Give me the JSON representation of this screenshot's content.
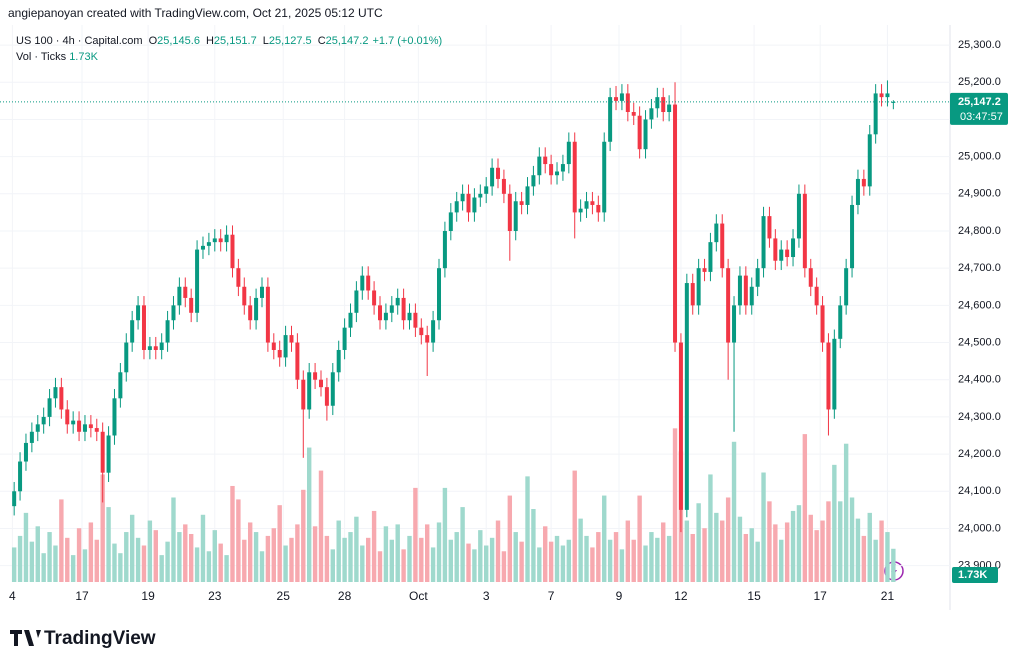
{
  "header": "angiepanoyan created with TradingView.com, Oct 21, 2025 05:12 UTC",
  "logo": "TradingView",
  "chart_data": {
    "type": "candlestick",
    "legend": {
      "symbol": "US 100 · 4h · Capital.com",
      "fields": [
        {
          "label": "O",
          "value": "25,145.6"
        },
        {
          "label": "H",
          "value": "25,151.7"
        },
        {
          "label": "L",
          "value": "25,127.5"
        },
        {
          "label": "C",
          "value": "25,147.2"
        }
      ],
      "change": "+1.7 (+0.01%)",
      "volume_title": "Vol · Ticks",
      "volume_value": "1.73K"
    },
    "price_label": "25,147.2",
    "countdown": "03:47:57",
    "up_color": "#089981",
    "down_color": "#f23645",
    "volume_up_color": "#9fd9cd",
    "volume_down_color": "#f7a9af",
    "grid": true,
    "xlim": [
      -2.4,
      158.6
    ],
    "xticks": [
      {
        "value": -0.3,
        "label": "4"
      },
      {
        "value": 11.5,
        "label": "17"
      },
      {
        "value": 22.7,
        "label": "19"
      },
      {
        "value": 34,
        "label": "23"
      },
      {
        "value": 45.6,
        "label": "25"
      },
      {
        "value": 56,
        "label": "28"
      },
      {
        "value": 68.5,
        "label": "Oct"
      },
      {
        "value": 80,
        "label": "3"
      },
      {
        "value": 91,
        "label": "7"
      },
      {
        "value": 102.5,
        "label": "9"
      },
      {
        "value": 113,
        "label": "12"
      },
      {
        "value": 125.4,
        "label": "15"
      },
      {
        "value": 136.6,
        "label": "17"
      },
      {
        "value": 148,
        "label": "21"
      }
    ],
    "ylim": [
      23856,
      25354
    ],
    "yticks": [
      {
        "value": 23900,
        "label": "23,900.0"
      },
      {
        "value": 24000,
        "label": "24,000.0"
      },
      {
        "value": 24100,
        "label": "24,100.0"
      },
      {
        "value": 24200,
        "label": "24,200.0"
      },
      {
        "value": 24300,
        "label": "24,300.0"
      },
      {
        "value": 24400,
        "label": "24,400.0"
      },
      {
        "value": 24500,
        "label": "24,500.0"
      },
      {
        "value": 24600,
        "label": "24,600.0"
      },
      {
        "value": 24700,
        "label": "24,700.0"
      },
      {
        "value": 24800,
        "label": "24,800.0"
      },
      {
        "value": 24900,
        "label": "24,900.0"
      },
      {
        "value": 25000,
        "label": "25,000.0"
      },
      {
        "value": 25100,
        "label": "25,100.0"
      },
      {
        "value": 25200,
        "label": "25,200.0"
      },
      {
        "value": 25300,
        "label": "25,300.0"
      }
    ],
    "volume_ylim": [
      0,
      29000
    ],
    "open": [
      24060,
      24100,
      24180,
      24230,
      24260,
      24280,
      24300,
      24350,
      24380,
      24320,
      24280,
      24290,
      24260,
      24280,
      24270,
      24260,
      24150,
      24250,
      24350,
      24420,
      24500,
      24560,
      24600,
      24480,
      24490,
      24480,
      24500,
      24560,
      24600,
      24650,
      24620,
      24580,
      24750,
      24760,
      24770,
      24780,
      24770,
      24790,
      24700,
      24650,
      24600,
      24560,
      24620,
      24650,
      24500,
      24480,
      24460,
      24520,
      24500,
      24400,
      24320,
      24420,
      24400,
      24380,
      24330,
      24420,
      24480,
      24540,
      24580,
      24640,
      24680,
      24640,
      24600,
      24560,
      24580,
      24600,
      24620,
      24560,
      24580,
      24540,
      24520,
      24500,
      24560,
      24700,
      24800,
      24850,
      24880,
      24900,
      24850,
      24890,
      24900,
      24920,
      24970,
      24940,
      24900,
      24800,
      24880,
      24870,
      24920,
      24950,
      25000,
      24980,
      24950,
      24960,
      24980,
      25040,
      24850,
      24860,
      24880,
      24870,
      24850,
      25040,
      25160,
      25150,
      25170,
      25120,
      25110,
      25020,
      25100,
      25130,
      25160,
      25120,
      25140,
      24500,
      24050,
      24660,
      24600,
      24700,
      24690,
      24770,
      24820,
      24700,
      24500,
      24600,
      24680,
      24600,
      24650,
      24700,
      24840,
      24780,
      24720,
      24750,
      24730,
      24780,
      24900,
      24700,
      24650,
      24600,
      24500,
      24320,
      24510,
      24600,
      24700,
      24870,
      24940,
      24920,
      25060,
      25170,
      25160,
      25145.6
    ],
    "high": [
      24125,
      24205,
      24255,
      24285,
      24305,
      24325,
      24375,
      24405,
      24405,
      24345,
      24315,
      24315,
      24305,
      24305,
      24295,
      24285,
      24275,
      24375,
      24445,
      24525,
      24585,
      24625,
      24625,
      24515,
      24515,
      24525,
      24585,
      24625,
      24675,
      24675,
      24645,
      24775,
      24785,
      24795,
      24805,
      24805,
      24815,
      24815,
      24725,
      24675,
      24625,
      24645,
      24675,
      24675,
      24525,
      24505,
      24545,
      24545,
      24525,
      24425,
      24445,
      24445,
      24425,
      24405,
      24445,
      24505,
      24565,
      24605,
      24665,
      24705,
      24705,
      24665,
      24625,
      24605,
      24625,
      24645,
      24645,
      24605,
      24605,
      24565,
      24545,
      24585,
      24725,
      24825,
      24875,
      24905,
      24925,
      24925,
      24915,
      24925,
      24945,
      24995,
      24995,
      24965,
      24925,
      24905,
      24905,
      24945,
      24975,
      25025,
      25025,
      25005,
      24985,
      25005,
      25065,
      25065,
      24885,
      24905,
      24905,
      24895,
      25065,
      25185,
      25190,
      25195,
      25195,
      25145,
      25135,
      25125,
      25155,
      25185,
      25185,
      25165,
      25200,
      24525,
      24685,
      24685,
      24725,
      24725,
      24795,
      24845,
      24845,
      24725,
      24625,
      24705,
      24705,
      24675,
      24725,
      24865,
      24865,
      24805,
      24775,
      24775,
      24805,
      24925,
      24925,
      24725,
      24675,
      24625,
      24525,
      24535,
      24625,
      24725,
      24895,
      24965,
      24965,
      25085,
      25195,
      25195,
      25205,
      25151.7
    ],
    "low": [
      24035,
      24075,
      24155,
      24205,
      24235,
      24255,
      24275,
      24325,
      24295,
      24255,
      24255,
      24235,
      24235,
      24245,
      24235,
      24070,
      24125,
      24225,
      24325,
      24395,
      24475,
      24535,
      24455,
      24455,
      24455,
      24455,
      24475,
      24535,
      24575,
      24595,
      24555,
      24555,
      24725,
      24735,
      24745,
      24745,
      24745,
      24675,
      24625,
      24575,
      24535,
      24535,
      24595,
      24475,
      24455,
      24435,
      24435,
      24475,
      24375,
      24190,
      24295,
      24375,
      24355,
      24290,
      24305,
      24395,
      24455,
      24515,
      24555,
      24615,
      24615,
      24575,
      24535,
      24535,
      24555,
      24575,
      24535,
      24535,
      24515,
      24495,
      24410,
      24475,
      24535,
      24675,
      24775,
      24825,
      24855,
      24825,
      24825,
      24865,
      24875,
      24895,
      24915,
      24875,
      24720,
      24775,
      24845,
      24845,
      24895,
      24925,
      24955,
      24925,
      24925,
      24935,
      24955,
      24780,
      24825,
      24835,
      24845,
      24825,
      24825,
      25015,
      25125,
      25125,
      25095,
      25085,
      24995,
      24995,
      25075,
      25105,
      25095,
      25095,
      24475,
      23990,
      24030,
      24575,
      24575,
      24665,
      24665,
      24745,
      24675,
      24400,
      24260,
      24575,
      24575,
      24575,
      24625,
      24675,
      24755,
      24695,
      24695,
      24705,
      24705,
      24755,
      24675,
      24625,
      24575,
      24475,
      24250,
      24295,
      24485,
      24575,
      24675,
      24845,
      24895,
      24895,
      25035,
      25135,
      25135,
      25127.5
    ],
    "close": [
      24100,
      24180,
      24230,
      24260,
      24280,
      24300,
      24350,
      24380,
      24320,
      24280,
      24290,
      24260,
      24280,
      24270,
      24260,
      24150,
      24250,
      24350,
      24420,
      24500,
      24560,
      24600,
      24480,
      24490,
      24480,
      24500,
      24560,
      24600,
      24650,
      24620,
      24580,
      24750,
      24760,
      24770,
      24780,
      24770,
      24790,
      24700,
      24650,
      24600,
      24560,
      24620,
      24650,
      24500,
      24480,
      24460,
      24520,
      24500,
      24400,
      24320,
      24420,
      24400,
      24380,
      24330,
      24420,
      24480,
      24540,
      24580,
      24640,
      24680,
      24640,
      24600,
      24560,
      24580,
      24600,
      24620,
      24560,
      24580,
      24540,
      24520,
      24500,
      24560,
      24700,
      24800,
      24850,
      24880,
      24900,
      24850,
      24890,
      24900,
      24920,
      24970,
      24940,
      24900,
      24800,
      24880,
      24870,
      24920,
      24950,
      25000,
      24980,
      24950,
      24960,
      24980,
      25040,
      24850,
      24860,
      24880,
      24870,
      24850,
      25040,
      25160,
      25150,
      25170,
      25120,
      25110,
      25020,
      25100,
      25130,
      25160,
      25120,
      25140,
      24500,
      24050,
      24660,
      24600,
      24700,
      24690,
      24770,
      24820,
      24700,
      24500,
      24600,
      24680,
      24600,
      24650,
      24700,
      24840,
      24780,
      24720,
      24750,
      24730,
      24780,
      24900,
      24700,
      24650,
      24600,
      24500,
      24320,
      24510,
      24600,
      24700,
      24870,
      24940,
      24920,
      25060,
      25170,
      25160,
      25170,
      25147.2
    ],
    "volume": [
      1800,
      2400,
      3600,
      2100,
      2900,
      1500,
      2600,
      1900,
      4300,
      2300,
      1400,
      2800,
      1700,
      3100,
      2200,
      5600,
      3900,
      2000,
      1500,
      2600,
      3500,
      2300,
      1900,
      3200,
      2700,
      1400,
      2100,
      4400,
      2600,
      3000,
      2500,
      1800,
      3500,
      1600,
      2700,
      2000,
      1400,
      5000,
      4300,
      2200,
      3100,
      2600,
      1600,
      2400,
      2800,
      4000,
      1900,
      2300,
      3000,
      4800,
      7000,
      2900,
      5800,
      2400,
      1700,
      3200,
      2300,
      2600,
      3400,
      1900,
      2300,
      3700,
      1600,
      2900,
      2200,
      3000,
      1700,
      2400,
      4900,
      2300,
      3000,
      1800,
      3100,
      4900,
      2200,
      2600,
      3900,
      2000,
      1700,
      2700,
      1900,
      2300,
      3200,
      1600,
      4500,
      2600,
      2100,
      5500,
      3800,
      1800,
      2900,
      2100,
      2400,
      1900,
      2200,
      5800,
      3300,
      2400,
      1800,
      2600,
      4500,
      2200,
      2600,
      1700,
      3200,
      2200,
      4500,
      1900,
      2600,
      2300,
      3100,
      2400,
      8000,
      6800,
      3200,
      2500,
      4100,
      2800,
      5600,
      3600,
      3200,
      4400,
      7300,
      3400,
      2500,
      2800,
      2100,
      5700,
      4200,
      3000,
      2200,
      3100,
      3700,
      4000,
      7700,
      3500,
      2700,
      3200,
      4200,
      6100,
      4200,
      7200,
      4400,
      3300,
      2400,
      3600,
      2200,
      3200,
      2600,
      1730
    ]
  }
}
